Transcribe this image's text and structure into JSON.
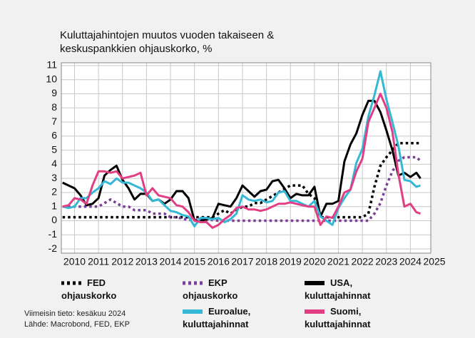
{
  "chart_data": {
    "type": "line",
    "title": "Kuluttajahintojen muutos vuoden takaiseen & keskuspankkien ohjauskorko, %",
    "notes": [
      "Viimeisin tieto: kesäkuu 2024",
      "Lähde: Macrobond, FED, EKP"
    ],
    "x": [
      2009.5,
      2009.75,
      2010,
      2010.25,
      2010.5,
      2010.75,
      2011,
      2011.25,
      2011.5,
      2011.75,
      2012,
      2012.25,
      2012.5,
      2012.75,
      2013,
      2013.25,
      2013.5,
      2013.75,
      2014,
      2014.25,
      2014.5,
      2014.75,
      2015,
      2015.25,
      2015.5,
      2015.75,
      2016,
      2016.25,
      2016.5,
      2016.75,
      2017,
      2017.25,
      2017.5,
      2017.75,
      2018,
      2018.25,
      2018.5,
      2018.75,
      2019,
      2019.25,
      2019.5,
      2019.75,
      2020,
      2020.25,
      2020.5,
      2020.75,
      2021,
      2021.25,
      2021.5,
      2021.75,
      2022,
      2022.25,
      2022.5,
      2022.75,
      2023,
      2023.25,
      2023.5,
      2023.75,
      2024,
      2024.25,
      2024.42
    ],
    "series": [
      {
        "name": "FED ohjauskorko",
        "color": "#000000",
        "style": "dotted",
        "values": [
          0.25,
          0.25,
          0.25,
          0.25,
          0.25,
          0.25,
          0.25,
          0.25,
          0.25,
          0.25,
          0.25,
          0.25,
          0.25,
          0.25,
          0.25,
          0.25,
          0.25,
          0.25,
          0.25,
          0.25,
          0.25,
          0.25,
          0.25,
          0.25,
          0.25,
          0.25,
          0.5,
          0.75,
          0.5,
          0.75,
          1.0,
          1.0,
          1.25,
          1.25,
          1.5,
          1.75,
          2.0,
          2.25,
          2.5,
          2.5,
          2.5,
          1.9,
          1.6,
          0.25,
          0.25,
          0.25,
          0.25,
          0.25,
          0.25,
          0.25,
          0.25,
          0.5,
          2.4,
          3.9,
          4.5,
          5.0,
          5.5,
          5.5,
          5.5,
          5.5,
          5.5
        ]
      },
      {
        "name": "EKP ohjauskorko",
        "color": "#7b3f98",
        "style": "dotted",
        "values": [
          1.0,
          1.0,
          1.0,
          1.0,
          1.0,
          1.0,
          1.0,
          1.25,
          1.5,
          1.25,
          1.0,
          1.0,
          0.75,
          0.75,
          0.75,
          0.5,
          0.5,
          0.5,
          0.25,
          0.25,
          0.15,
          0.05,
          0.05,
          0.05,
          0.05,
          0.05,
          0,
          0,
          0,
          0,
          0,
          0,
          0,
          0,
          0,
          0,
          0,
          0,
          0,
          0,
          0,
          0,
          0,
          0,
          0,
          0,
          0,
          0,
          0,
          0,
          0,
          0,
          0.5,
          1.25,
          2.5,
          3.5,
          4.25,
          4.5,
          4.5,
          4.5,
          4.25
        ]
      },
      {
        "name": "USA, kuluttajahinnat",
        "color": "#000000",
        "style": "solid",
        "values": [
          2.7,
          2.5,
          2.3,
          1.8,
          1.1,
          1.2,
          1.6,
          3.2,
          3.6,
          3.9,
          2.9,
          2.3,
          1.5,
          1.9,
          1.9,
          1.4,
          1.5,
          1.2,
          1.5,
          2.1,
          2.1,
          1.6,
          0.0,
          0.0,
          0.1,
          0.2,
          1.2,
          1.1,
          1.0,
          1.6,
          2.5,
          2.1,
          1.7,
          2.1,
          2.2,
          2.8,
          2.9,
          2.3,
          1.6,
          1.9,
          1.8,
          1.8,
          2.4,
          0.3,
          1.2,
          1.2,
          1.4,
          4.2,
          5.4,
          6.2,
          7.5,
          8.5,
          8.5,
          7.7,
          6.4,
          5.0,
          3.2,
          3.4,
          3.1,
          3.4,
          3.0
        ]
      },
      {
        "name": "Euroalue, kuluttajahinnat",
        "color": "#35b8d6",
        "style": "solid",
        "values": [
          1.0,
          0.9,
          1.0,
          1.6,
          1.6,
          2.0,
          2.3,
          2.8,
          2.6,
          3.0,
          2.7,
          2.7,
          2.5,
          2.3,
          2.0,
          1.4,
          1.5,
          1.1,
          0.7,
          0.6,
          0.4,
          0.3,
          -0.4,
          0.2,
          0.2,
          0.1,
          0.2,
          -0.1,
          0.1,
          0.5,
          1.8,
          1.5,
          1.4,
          1.5,
          1.3,
          1.4,
          2.0,
          2.1,
          1.4,
          1.4,
          1.2,
          1.0,
          1.4,
          0.3,
          0.0,
          -0.3,
          0.9,
          1.6,
          2.2,
          4.1,
          5.1,
          7.4,
          8.9,
          10.6,
          8.6,
          7.0,
          5.3,
          2.9,
          2.8,
          2.4,
          2.5
        ]
      },
      {
        "name": "Suomi, kuluttajahinnat",
        "color": "#e23e84",
        "style": "solid",
        "values": [
          1.0,
          1.1,
          1.6,
          1.5,
          1.2,
          2.5,
          3.5,
          3.5,
          3.4,
          3.5,
          3.0,
          3.1,
          3.2,
          3.4,
          1.8,
          2.3,
          1.8,
          1.7,
          1.6,
          1.1,
          1.0,
          0.6,
          0.0,
          -0.1,
          -0.1,
          -0.5,
          -0.3,
          0.1,
          0.4,
          0.9,
          1.0,
          0.8,
          0.8,
          0.7,
          0.8,
          1.0,
          1.2,
          1.2,
          1.3,
          1.2,
          1.1,
          1.0,
          1.0,
          -0.3,
          0.3,
          0.2,
          1.0,
          2.0,
          2.2,
          3.5,
          4.4,
          7.0,
          8.0,
          9.0,
          8.0,
          6.3,
          3.3,
          1.0,
          1.2,
          0.6,
          0.5
        ]
      }
    ],
    "xlim": [
      2009.45,
      2024.85
    ],
    "xticks": [
      2010,
      2011,
      2012,
      2013,
      2014,
      2015,
      2016,
      2017,
      2018,
      2019,
      2020,
      2021,
      2022,
      2023,
      2024,
      2025
    ],
    "ylim": [
      -2.3,
      11.2
    ],
    "yticks": [
      -2,
      -1,
      0,
      1,
      2,
      3,
      4,
      5,
      6,
      7,
      8,
      9,
      10,
      11
    ],
    "grid": true
  }
}
